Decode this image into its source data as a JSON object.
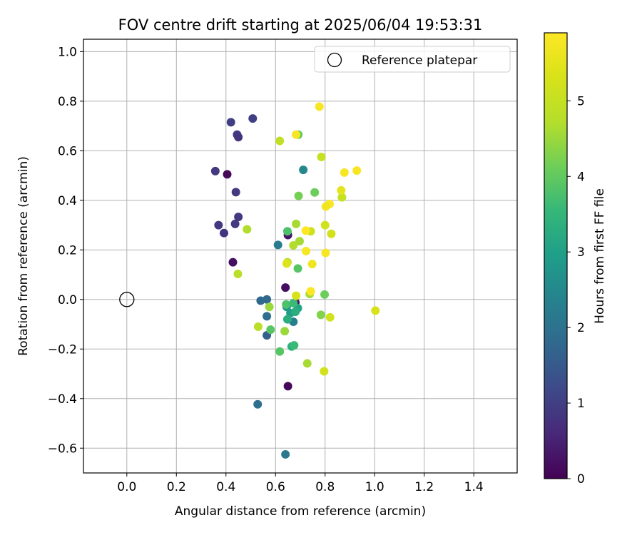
{
  "chart_data": {
    "type": "scatter",
    "title": "FOV centre drift starting at 2025/06/04 19:53:31",
    "xlabel": "Angular distance from reference (arcmin)",
    "ylabel": "Rotation from reference (arcmin)",
    "xlim": [
      -0.175,
      1.575
    ],
    "ylim": [
      -0.7,
      1.05
    ],
    "xticks": [
      0.0,
      0.2,
      0.4,
      0.6,
      0.8,
      1.0,
      1.2,
      1.4
    ],
    "xtick_labels": [
      "0.0",
      "0.2",
      "0.4",
      "0.6",
      "0.8",
      "1.0",
      "1.2",
      "1.4"
    ],
    "yticks": [
      -0.6,
      -0.4,
      -0.2,
      0.0,
      0.2,
      0.4,
      0.6,
      0.8,
      1.0
    ],
    "ytick_labels": [
      "−0.6",
      "−0.4",
      "−0.2",
      "0.0",
      "0.2",
      "0.4",
      "0.6",
      "0.8",
      "1.0"
    ],
    "grid": true,
    "legend": {
      "location": "top-right",
      "entries": [
        {
          "label": "Reference platepar",
          "marker": "hollow-circle"
        }
      ]
    },
    "reference": {
      "x": 0.0,
      "y": 0.0
    },
    "colorbar": {
      "label": "Hours from first FF file",
      "colormap": "viridis",
      "range": [
        0,
        5.9
      ],
      "ticks": [
        0,
        1,
        2,
        3,
        4,
        5
      ],
      "tick_labels": [
        "0",
        "1",
        "2",
        "3",
        "4",
        "5"
      ]
    },
    "points": [
      {
        "x": 0.405,
        "y": 0.505,
        "h": 0.1
      },
      {
        "x": 0.428,
        "y": 0.15,
        "h": 0.2
      },
      {
        "x": 0.65,
        "y": 0.26,
        "h": 0.3
      },
      {
        "x": 0.64,
        "y": 0.048,
        "h": 0.2
      },
      {
        "x": 0.65,
        "y": -0.35,
        "h": 0.1
      },
      {
        "x": 0.68,
        "y": -0.012,
        "h": 0.3
      },
      {
        "x": 0.508,
        "y": 0.73,
        "h": 1.0
      },
      {
        "x": 0.42,
        "y": 0.715,
        "h": 1.0
      },
      {
        "x": 0.445,
        "y": 0.665,
        "h": 0.9
      },
      {
        "x": 0.45,
        "y": 0.655,
        "h": 0.8
      },
      {
        "x": 0.357,
        "y": 0.518,
        "h": 0.9
      },
      {
        "x": 0.44,
        "y": 0.433,
        "h": 0.9
      },
      {
        "x": 0.45,
        "y": 0.333,
        "h": 0.9
      },
      {
        "x": 0.437,
        "y": 0.305,
        "h": 0.9
      },
      {
        "x": 0.37,
        "y": 0.3,
        "h": 0.9
      },
      {
        "x": 0.392,
        "y": 0.268,
        "h": 0.8
      },
      {
        "x": 0.54,
        "y": -0.005,
        "h": 1.8
      },
      {
        "x": 0.565,
        "y": 0.0,
        "h": 1.8
      },
      {
        "x": 0.565,
        "y": -0.068,
        "h": 1.9
      },
      {
        "x": 0.565,
        "y": -0.145,
        "h": 1.6
      },
      {
        "x": 0.528,
        "y": -0.423,
        "h": 1.9
      },
      {
        "x": 0.64,
        "y": -0.625,
        "h": 2.1
      },
      {
        "x": 0.61,
        "y": 0.22,
        "h": 2.2
      },
      {
        "x": 0.712,
        "y": 0.523,
        "h": 2.5
      },
      {
        "x": 0.672,
        "y": -0.09,
        "h": 2.3
      },
      {
        "x": 0.645,
        "y": -0.03,
        "h": 2.8
      },
      {
        "x": 0.66,
        "y": -0.055,
        "h": 2.9
      },
      {
        "x": 0.69,
        "y": -0.035,
        "h": 3.1
      },
      {
        "x": 0.648,
        "y": -0.08,
        "h": 3.3
      },
      {
        "x": 0.68,
        "y": -0.05,
        "h": 3.3
      },
      {
        "x": 0.665,
        "y": -0.19,
        "h": 3.4
      },
      {
        "x": 0.675,
        "y": -0.185,
        "h": 3.6
      },
      {
        "x": 0.643,
        "y": -0.02,
        "h": 3.8
      },
      {
        "x": 0.672,
        "y": -0.015,
        "h": 3.6
      },
      {
        "x": 0.58,
        "y": -0.122,
        "h": 3.9
      },
      {
        "x": 0.617,
        "y": -0.21,
        "h": 3.9
      },
      {
        "x": 0.648,
        "y": 0.275,
        "h": 3.8
      },
      {
        "x": 0.69,
        "y": 0.125,
        "h": 3.9
      },
      {
        "x": 0.692,
        "y": 0.665,
        "h": 4.0
      },
      {
        "x": 0.758,
        "y": 0.432,
        "h": 4.1
      },
      {
        "x": 0.693,
        "y": 0.418,
        "h": 4.2
      },
      {
        "x": 0.798,
        "y": 0.02,
        "h": 4.1
      },
      {
        "x": 0.783,
        "y": -0.062,
        "h": 4.3
      },
      {
        "x": 0.575,
        "y": -0.03,
        "h": 4.5
      },
      {
        "x": 0.637,
        "y": -0.128,
        "h": 4.5
      },
      {
        "x": 0.728,
        "y": -0.258,
        "h": 4.6
      },
      {
        "x": 0.683,
        "y": 0.305,
        "h": 4.6
      },
      {
        "x": 0.697,
        "y": 0.235,
        "h": 4.6
      },
      {
        "x": 0.672,
        "y": 0.218,
        "h": 4.7
      },
      {
        "x": 0.648,
        "y": 0.15,
        "h": 4.7
      },
      {
        "x": 0.738,
        "y": 0.022,
        "h": 4.6
      },
      {
        "x": 0.485,
        "y": 0.283,
        "h": 4.7
      },
      {
        "x": 0.448,
        "y": 0.103,
        "h": 4.8
      },
      {
        "x": 0.53,
        "y": -0.11,
        "h": 4.8
      },
      {
        "x": 0.617,
        "y": 0.64,
        "h": 4.9
      },
      {
        "x": 0.785,
        "y": 0.575,
        "h": 5.0
      },
      {
        "x": 0.742,
        "y": 0.275,
        "h": 5.1
      },
      {
        "x": 0.868,
        "y": 0.412,
        "h": 5.0
      },
      {
        "x": 0.825,
        "y": 0.265,
        "h": 5.2
      },
      {
        "x": 0.8,
        "y": 0.3,
        "h": 5.2
      },
      {
        "x": 0.82,
        "y": -0.072,
        "h": 5.2
      },
      {
        "x": 0.796,
        "y": -0.29,
        "h": 5.2
      },
      {
        "x": 1.003,
        "y": -0.045,
        "h": 5.3
      },
      {
        "x": 0.683,
        "y": 0.015,
        "h": 5.3
      },
      {
        "x": 0.645,
        "y": 0.145,
        "h": 5.4
      },
      {
        "x": 0.865,
        "y": 0.44,
        "h": 5.5
      },
      {
        "x": 0.748,
        "y": 0.143,
        "h": 5.7
      },
      {
        "x": 0.777,
        "y": 0.778,
        "h": 5.8
      },
      {
        "x": 0.683,
        "y": 0.665,
        "h": 5.8
      },
      {
        "x": 0.878,
        "y": 0.512,
        "h": 5.8
      },
      {
        "x": 0.928,
        "y": 0.52,
        "h": 5.8
      },
      {
        "x": 0.818,
        "y": 0.385,
        "h": 5.8
      },
      {
        "x": 0.803,
        "y": 0.375,
        "h": 5.7
      },
      {
        "x": 0.722,
        "y": 0.278,
        "h": 5.9
      },
      {
        "x": 0.723,
        "y": 0.195,
        "h": 5.8
      },
      {
        "x": 0.802,
        "y": 0.188,
        "h": 5.8
      },
      {
        "x": 0.742,
        "y": 0.033,
        "h": 5.9
      }
    ]
  }
}
